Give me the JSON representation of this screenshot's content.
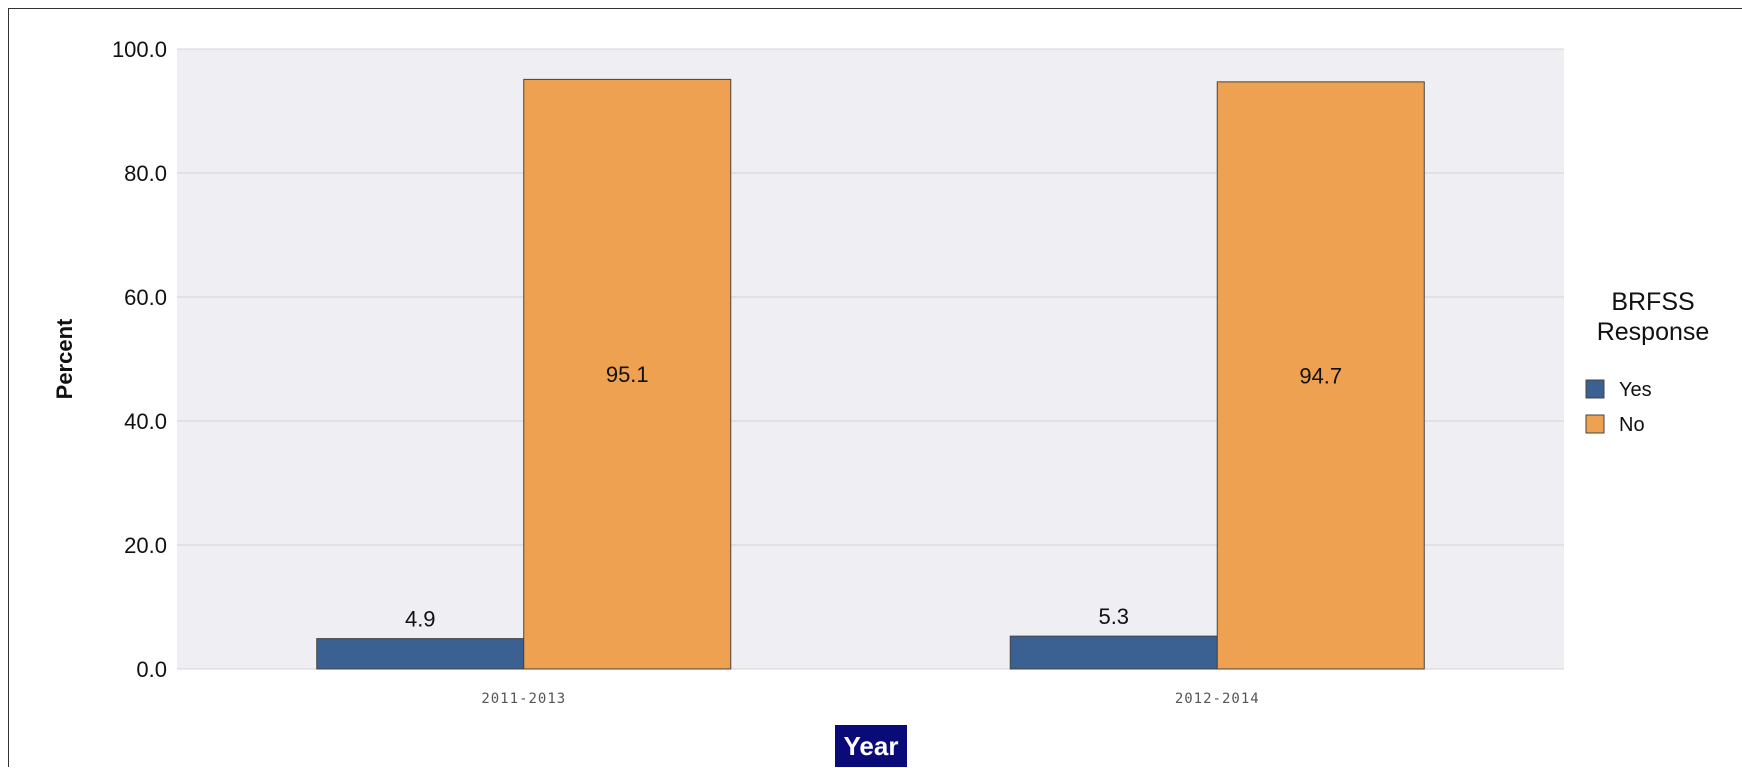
{
  "chart_data": {
    "type": "bar",
    "categories": [
      "2011-2013",
      "2012-2014"
    ],
    "series": [
      {
        "name": "Yes",
        "values": [
          4.9,
          5.3
        ],
        "color": "#3b6192"
      },
      {
        "name": "No",
        "values": [
          95.1,
          94.7
        ],
        "color": "#eea150"
      }
    ],
    "xlabel": "Year",
    "ylabel": "Percent",
    "ylim": [
      0,
      100
    ],
    "yticks": [
      "0.0",
      "20.0",
      "40.0",
      "60.0",
      "80.0",
      "100.0"
    ],
    "grid": true,
    "legend": {
      "title_line1": "BRFSS",
      "title_line2": "Response",
      "placement": "right"
    },
    "colors": {
      "plot_background": "#efeef3",
      "gridline": "#d4d3da",
      "xlabel_background": "#0a0a78"
    }
  }
}
